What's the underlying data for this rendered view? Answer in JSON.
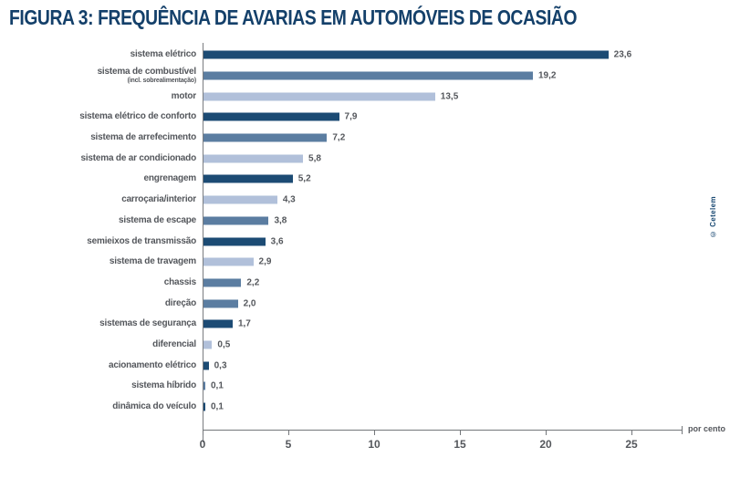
{
  "header": {
    "figure_label": "FIGURA 3:",
    "title": "FREQUÊNCIA DE AVARIAS EM AUTOMÓVEIS DE OCASIÃO"
  },
  "credit": "© Cetelem",
  "chart_data": {
    "type": "bar",
    "orientation": "horizontal",
    "title": "FIGURA 3: FREQUÊNCIA DE AVARIAS EM AUTOMÓVEIS DE OCASIÃO",
    "unit_label": "por cento",
    "xlim": [
      0,
      25
    ],
    "x_ticks": [
      0,
      5,
      10,
      15,
      20,
      25
    ],
    "tick_labels": [
      "0",
      "5",
      "10",
      "15",
      "20",
      "25"
    ],
    "grid": false,
    "legend": false,
    "palette": {
      "dark": "#1c4b74",
      "medium": "#5b7da1",
      "light": "#b1c0da"
    },
    "categories": [
      {
        "label": "sistema elétrico",
        "sublabel": "",
        "value": 23.6,
        "display": "23,6",
        "color": "dark"
      },
      {
        "label": "sistema de combustível",
        "sublabel": "(incl. sobrealimentação)",
        "value": 19.2,
        "display": "19,2",
        "color": "medium"
      },
      {
        "label": "motor",
        "sublabel": "",
        "value": 13.5,
        "display": "13,5",
        "color": "light"
      },
      {
        "label": "sistema elétrico de conforto",
        "sublabel": "",
        "value": 7.9,
        "display": "7,9",
        "color": "dark"
      },
      {
        "label": "sistema de arrefecimento",
        "sublabel": "",
        "value": 7.2,
        "display": "7,2",
        "color": "medium"
      },
      {
        "label": "sistema de ar condicionado",
        "sublabel": "",
        "value": 5.8,
        "display": "5,8",
        "color": "light"
      },
      {
        "label": "engrenagem",
        "sublabel": "",
        "value": 5.2,
        "display": "5,2",
        "color": "dark"
      },
      {
        "label": "carroçaria/interior",
        "sublabel": "",
        "value": 4.3,
        "display": "4,3",
        "color": "light"
      },
      {
        "label": "sistema de escape",
        "sublabel": "",
        "value": 3.8,
        "display": "3,8",
        "color": "medium"
      },
      {
        "label": "semieixos de transmissão",
        "sublabel": "",
        "value": 3.6,
        "display": "3,6",
        "color": "dark"
      },
      {
        "label": "sistema de travagem",
        "sublabel": "",
        "value": 2.9,
        "display": "2,9",
        "color": "light"
      },
      {
        "label": "chassis",
        "sublabel": "",
        "value": 2.2,
        "display": "2,2",
        "color": "medium"
      },
      {
        "label": "direção",
        "sublabel": "",
        "value": 2.0,
        "display": "2,0",
        "color": "medium"
      },
      {
        "label": "sistemas de segurança",
        "sublabel": "",
        "value": 1.7,
        "display": "1,7",
        "color": "dark"
      },
      {
        "label": "diferencial",
        "sublabel": "",
        "value": 0.5,
        "display": "0,5",
        "color": "light"
      },
      {
        "label": "acionamento elétrico",
        "sublabel": "",
        "value": 0.3,
        "display": "0,3",
        "color": "dark"
      },
      {
        "label": "sistema híbrido",
        "sublabel": "",
        "value": 0.1,
        "display": "0,1",
        "color": "medium"
      },
      {
        "label": "dinâmica do veículo",
        "sublabel": "",
        "value": 0.1,
        "display": "0,1",
        "color": "dark"
      }
    ]
  }
}
